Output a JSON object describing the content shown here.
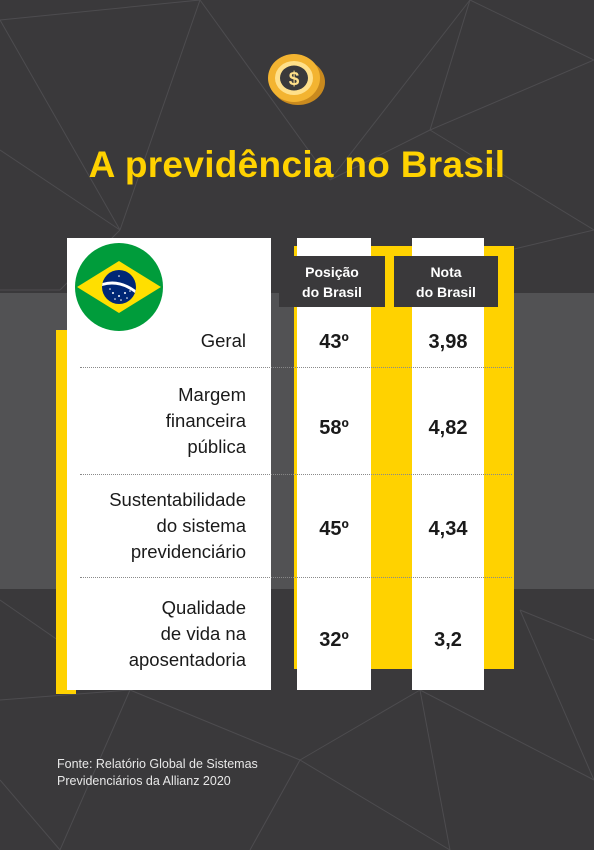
{
  "title": "A previdência no Brasil",
  "colors": {
    "accent": "#ffd200",
    "background": "#3a393b",
    "band": "#525254"
  },
  "icons": {
    "coin": "dollar-coin-icon",
    "flag": "brazil-flag-icon"
  },
  "table": {
    "headers": [
      {
        "line1": "Posição",
        "line2": "do Brasil"
      },
      {
        "line1": "Nota",
        "line2": "do Brasil"
      }
    ],
    "rows": [
      {
        "label": [
          "Geral"
        ],
        "position": "43º",
        "score": "3,98"
      },
      {
        "label": [
          "Margem",
          "financeira",
          "pública"
        ],
        "position": "58º",
        "score": "4,82"
      },
      {
        "label": [
          "Sustentabilidade",
          "do sistema",
          "previdenciário"
        ],
        "position": "45º",
        "score": "4,34"
      },
      {
        "label": [
          "Qualidade",
          "de vida na",
          "aposentadoria"
        ],
        "position": "32º",
        "score": "3,2"
      }
    ]
  },
  "source": {
    "line1": "Fonte: Relatório Global de Sistemas",
    "line2": "Previdenciários da Allianz 2020"
  }
}
